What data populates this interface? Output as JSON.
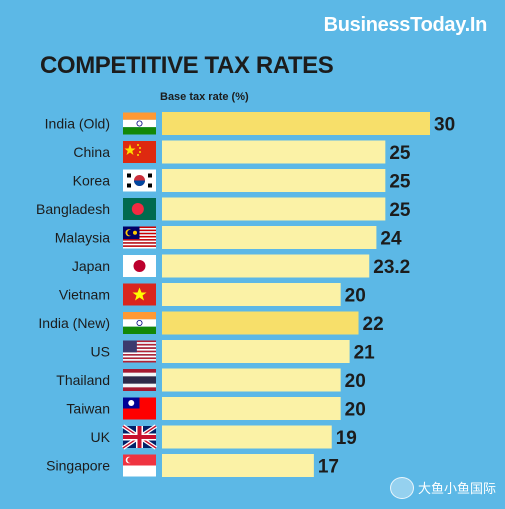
{
  "brand": "BusinessToday.In",
  "watermark": "大鱼小鱼国际",
  "chart_data": {
    "type": "bar",
    "orientation": "horizontal",
    "title": "COMPETITIVE TAX RATES",
    "subtitle": "Base tax rate (%)",
    "categories": [
      "India (Old)",
      "China",
      "Korea",
      "Bangladesh",
      "Malaysia",
      "Japan",
      "Vietnam",
      "India (New)",
      "US",
      "Thailand",
      "Taiwan",
      "UK",
      "Singapore"
    ],
    "values": [
      30,
      25,
      25,
      25,
      24,
      23.2,
      20,
      22,
      21,
      20,
      20,
      19,
      17
    ],
    "value_labels": [
      "30",
      "25",
      "25",
      "25",
      "24",
      "23.2",
      "20",
      "22",
      "21",
      "20",
      "20",
      "19",
      "17"
    ],
    "flags": [
      "india-flag-icon",
      "china-flag-icon",
      "korea-flag-icon",
      "bangladesh-flag-icon",
      "malaysia-flag-icon",
      "japan-flag-icon",
      "vietnam-flag-icon",
      "india-flag-icon",
      "us-flag-icon",
      "thailand-flag-icon",
      "taiwan-flag-icon",
      "uk-flag-icon",
      "singapore-flag-icon"
    ],
    "highlighted": [
      "India (Old)",
      "India (New)"
    ],
    "colors": {
      "background": "#5cb8e6",
      "bar": "#fbf2a6",
      "bar_highlight": "#f7df6a",
      "text": "#1c1c1c"
    },
    "xlim": [
      0,
      30
    ],
    "grid": false,
    "legend": "none"
  }
}
